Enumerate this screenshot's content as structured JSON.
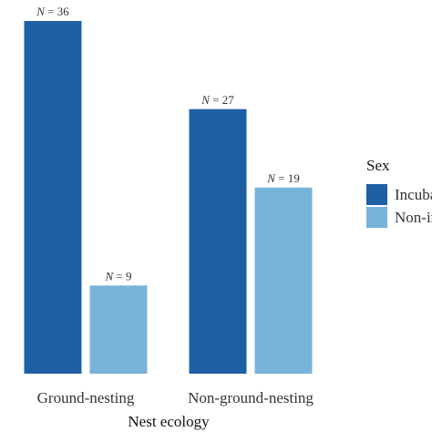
{
  "chart_data": {
    "type": "bar",
    "title": "",
    "xlabel": "Nest ecology",
    "ylabel": "",
    "categories": [
      "Ground-nesting",
      "Non-ground-nesting"
    ],
    "series": [
      {
        "name": "Incubating",
        "color": "#1f5fa4",
        "values": [
          36,
          27
        ],
        "labels": [
          "N = 36",
          "N = 27"
        ]
      },
      {
        "name": "Non-incubating",
        "color": "#7ab3d9",
        "values": [
          9,
          19
        ],
        "labels": [
          "N = 9",
          "N = 19"
        ]
      }
    ],
    "ylim": [
      0,
      36
    ],
    "grid": false,
    "legend": {
      "title": "Sex",
      "placement": "right"
    }
  }
}
